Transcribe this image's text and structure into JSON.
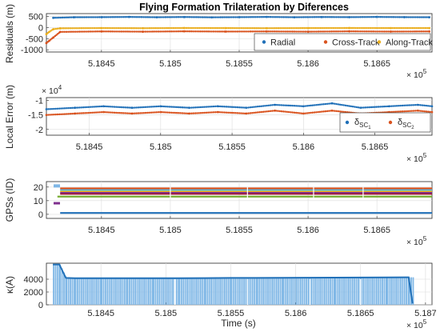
{
  "colors": {
    "blue": "#2070b8",
    "orange": "#d9531f",
    "yellow": "#ecb01f",
    "purple": "#7e2f8e",
    "green": "#77ac30",
    "cyan": "#4dbeee",
    "darkred": "#a2142f",
    "lightblue": "#7fb7e6"
  },
  "title": "Flying Formation Trilateration by Diferences",
  "chart_data": [
    {
      "type": "scatter",
      "ylabel": "Residuals (m)",
      "xlim": [
        518410,
        518690
      ],
      "ylim": [
        -1100,
        620
      ],
      "yticks": [
        500,
        0,
        -500,
        -1000
      ],
      "ytick_labels": [
        "500",
        "0",
        "-500",
        "-1000"
      ],
      "xticks": [
        518450,
        518500,
        518550,
        518600,
        518650
      ],
      "xtick_labels": [
        "5.1845",
        "5.185",
        "5.1855",
        "5.186",
        "5.1865"
      ],
      "x_exponent_base": "× 10",
      "x_exponent_power": "5",
      "grid": true,
      "legend_position": "inside lower-right",
      "series": [
        {
          "name": "Radial",
          "color_key": "blue",
          "x": [
            518415,
            518430,
            518450,
            518470,
            518490,
            518510,
            518530,
            518550,
            518570,
            518590,
            518610,
            518630,
            518650,
            518670,
            518688
          ],
          "y": [
            430,
            455,
            460,
            470,
            455,
            465,
            450,
            460,
            470,
            455,
            465,
            460,
            470,
            460,
            455
          ]
        },
        {
          "name": "Cross-Track",
          "color_key": "orange",
          "x": [
            518410,
            518412,
            518415,
            518420,
            518450,
            518480,
            518510,
            518540,
            518570,
            518600,
            518630,
            518660,
            518688
          ],
          "y": [
            -700,
            -600,
            -450,
            -200,
            -180,
            -190,
            -175,
            -185,
            -180,
            -190,
            -175,
            -185,
            -180
          ]
        },
        {
          "name": "Along-Track",
          "color_key": "yellow",
          "x": [
            518410,
            518412,
            518415,
            518420,
            518450,
            518480,
            518510,
            518540,
            518570,
            518600,
            518630,
            518660,
            518688
          ],
          "y": [
            -300,
            -200,
            -80,
            -40,
            -30,
            -35,
            -25,
            -30,
            -35,
            -30,
            -25,
            -30,
            -30
          ]
        }
      ]
    },
    {
      "type": "scatter",
      "ylabel": "Local Error (m)",
      "y_exponent_base": "× 10",
      "y_exponent_power": "4",
      "xlim": [
        518420,
        518690
      ],
      "ylim": [
        -2.2,
        -0.9
      ],
      "yticks": [
        -1,
        -1.5,
        -2
      ],
      "ytick_labels": [
        "-1",
        "-1.5",
        "-2"
      ],
      "xticks": [
        518450,
        518500,
        518550,
        518600,
        518650
      ],
      "xtick_labels": [
        "5.1845",
        "5.185",
        "5.1855",
        "5.186",
        "5.1865"
      ],
      "x_exponent_base": "× 10",
      "x_exponent_power": "5",
      "grid": true,
      "legend_position": "inside lower-right",
      "series": [
        {
          "name": "δSC1",
          "name_main": "δ",
          "name_sub": "SC",
          "name_subsub": "1",
          "color_key": "blue",
          "x": [
            518420,
            518440,
            518460,
            518480,
            518500,
            518520,
            518540,
            518560,
            518580,
            518600,
            518620,
            518640,
            518660,
            518680,
            518690
          ],
          "y": [
            -1.3,
            -1.25,
            -1.2,
            -1.25,
            -1.2,
            -1.25,
            -1.2,
            -1.25,
            -1.15,
            -1.2,
            -1.1,
            -1.25,
            -1.2,
            -1.15,
            -1.2
          ]
        },
        {
          "name": "δSC2",
          "name_main": "δ",
          "name_sub": "SC",
          "name_subsub": "2",
          "color_key": "orange",
          "x": [
            518420,
            518440,
            518460,
            518480,
            518500,
            518520,
            518540,
            518560,
            518580,
            518600,
            518620,
            518640,
            518660,
            518680,
            518690
          ],
          "y": [
            -1.5,
            -1.45,
            -1.4,
            -1.45,
            -1.4,
            -1.45,
            -1.4,
            -1.45,
            -1.35,
            -1.45,
            -1.35,
            -1.45,
            -1.4,
            -1.35,
            -1.4
          ]
        }
      ]
    },
    {
      "type": "scatter",
      "ylabel": "GPSs (ID)",
      "xlim": [
        518410,
        518690
      ],
      "ylim": [
        -3,
        24
      ],
      "yticks": [
        20,
        10,
        0
      ],
      "ytick_labels": [
        "20",
        "10",
        "0"
      ],
      "xticks": [
        518450,
        518500,
        518550,
        518600,
        518650
      ],
      "xtick_labels": [
        "5.1845",
        "5.185",
        "5.1855",
        "5.186",
        "5.1865"
      ],
      "x_exponent_base": "× 10",
      "x_exponent_power": "5",
      "grid": true,
      "series": [
        {
          "id": 1,
          "color_key": "blue",
          "x": [
            518420,
            518690
          ],
          "y": [
            1,
            1
          ]
        },
        {
          "id": 13,
          "color_key": "green",
          "x": [
            518418,
            518690
          ],
          "y": [
            13,
            13
          ]
        },
        {
          "id": 15,
          "color_key": "darkred",
          "x": [
            518420,
            518690
          ],
          "y": [
            15,
            15
          ]
        },
        {
          "id": 16,
          "color_key": "purple",
          "x": [
            518420,
            518690
          ],
          "y": [
            16,
            16
          ]
        },
        {
          "id": 17,
          "color_key": "yellow",
          "x": [
            518420,
            518690
          ],
          "y": [
            17,
            17
          ]
        },
        {
          "id": 18,
          "color_key": "cyan",
          "x": [
            518420,
            518690
          ],
          "y": [
            18,
            18
          ]
        },
        {
          "id": 19,
          "color_key": "orange",
          "x": [
            518420,
            518690
          ],
          "y": [
            19,
            19
          ]
        }
      ]
    },
    {
      "type": "bar",
      "ylabel": "κ(A)",
      "xlabel": "Time (s)",
      "xlim": [
        518408,
        518705
      ],
      "ylim": [
        0,
        6500
      ],
      "yticks": [
        0,
        2000,
        4000
      ],
      "ytick_labels": [
        "0",
        "2000",
        "4000"
      ],
      "xticks": [
        518450,
        518500,
        518550,
        518600,
        518650,
        518700
      ],
      "xtick_labels": [
        "5.1845",
        "5.185",
        "5.1855",
        "5.186",
        "5.1865",
        "5.187"
      ],
      "x_exponent_base": "× 10",
      "x_exponent_power": "5",
      "grid": true,
      "color_key": "lightblue",
      "line_color_key": "blue",
      "x": [
        518413,
        518418,
        518423,
        518430,
        518450,
        518470,
        518490,
        518510,
        518530,
        518550,
        518570,
        518590,
        518610,
        518630,
        518650,
        518670,
        518687,
        518690
      ],
      "values": [
        6300,
        6300,
        4200,
        4150,
        4150,
        4150,
        4160,
        4160,
        4180,
        4200,
        4200,
        4220,
        4240,
        4250,
        4260,
        4280,
        4300,
        200
      ]
    }
  ]
}
